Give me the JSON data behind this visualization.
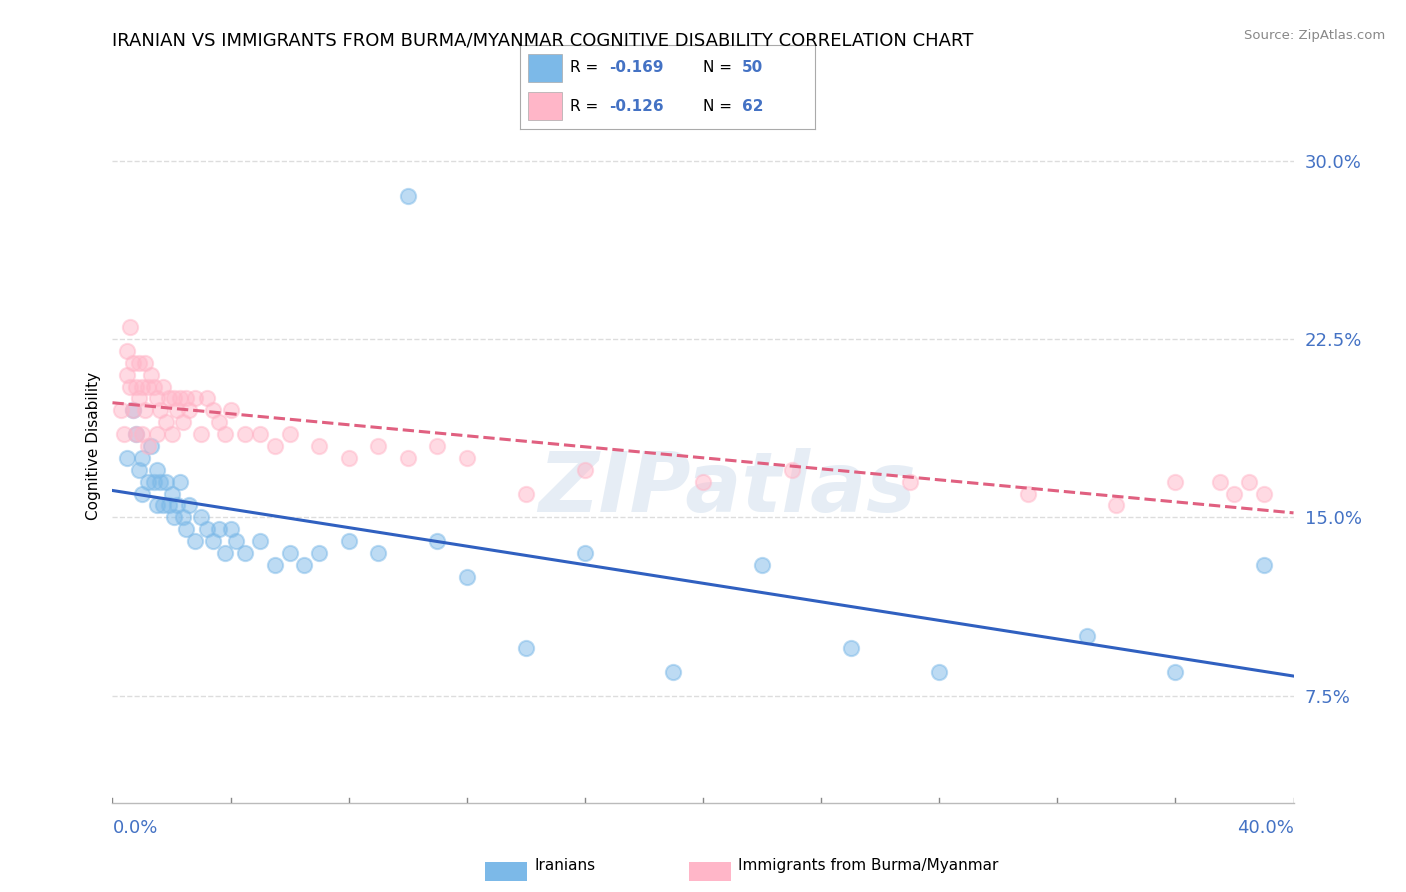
{
  "title": "IRANIAN VS IMMIGRANTS FROM BURMA/MYANMAR COGNITIVE DISABILITY CORRELATION CHART",
  "source": "Source: ZipAtlas.com",
  "ylabel": "Cognitive Disability",
  "yticks": [
    0.075,
    0.15,
    0.225,
    0.3
  ],
  "ytick_labels": [
    "7.5%",
    "15.0%",
    "22.5%",
    "30.0%"
  ],
  "xmin": 0.0,
  "xmax": 0.4,
  "ymin": 0.03,
  "ymax": 0.33,
  "iranians_color": "#7cb9e8",
  "burma_color": "#ffb6c8",
  "iranians_label": "Iranians",
  "burma_label": "Immigrants from Burma/Myanmar",
  "iranians_r": "-0.169",
  "iranians_n": "50",
  "burma_r": "-0.126",
  "burma_n": "62",
  "iranians_x": [
    0.005,
    0.007,
    0.008,
    0.009,
    0.01,
    0.01,
    0.012,
    0.013,
    0.014,
    0.015,
    0.015,
    0.016,
    0.017,
    0.018,
    0.019,
    0.02,
    0.021,
    0.022,
    0.023,
    0.024,
    0.025,
    0.026,
    0.028,
    0.03,
    0.032,
    0.034,
    0.036,
    0.038,
    0.04,
    0.042,
    0.045,
    0.05,
    0.055,
    0.06,
    0.065,
    0.07,
    0.08,
    0.09,
    0.1,
    0.11,
    0.12,
    0.14,
    0.16,
    0.19,
    0.22,
    0.25,
    0.28,
    0.33,
    0.36,
    0.39
  ],
  "iranians_y": [
    0.175,
    0.195,
    0.185,
    0.17,
    0.16,
    0.175,
    0.165,
    0.18,
    0.165,
    0.155,
    0.17,
    0.165,
    0.155,
    0.165,
    0.155,
    0.16,
    0.15,
    0.155,
    0.165,
    0.15,
    0.145,
    0.155,
    0.14,
    0.15,
    0.145,
    0.14,
    0.145,
    0.135,
    0.145,
    0.14,
    0.135,
    0.14,
    0.13,
    0.135,
    0.13,
    0.135,
    0.14,
    0.135,
    0.285,
    0.14,
    0.125,
    0.095,
    0.135,
    0.085,
    0.13,
    0.095,
    0.085,
    0.1,
    0.085,
    0.13
  ],
  "burma_x": [
    0.003,
    0.004,
    0.005,
    0.005,
    0.006,
    0.006,
    0.007,
    0.007,
    0.008,
    0.008,
    0.009,
    0.009,
    0.01,
    0.01,
    0.011,
    0.011,
    0.012,
    0.012,
    0.013,
    0.014,
    0.015,
    0.015,
    0.016,
    0.017,
    0.018,
    0.019,
    0.02,
    0.021,
    0.022,
    0.023,
    0.024,
    0.025,
    0.026,
    0.028,
    0.03,
    0.032,
    0.034,
    0.036,
    0.038,
    0.04,
    0.045,
    0.05,
    0.055,
    0.06,
    0.07,
    0.08,
    0.09,
    0.1,
    0.11,
    0.12,
    0.14,
    0.16,
    0.2,
    0.23,
    0.27,
    0.31,
    0.34,
    0.36,
    0.375,
    0.38,
    0.385,
    0.39
  ],
  "burma_y": [
    0.195,
    0.185,
    0.21,
    0.22,
    0.205,
    0.23,
    0.195,
    0.215,
    0.185,
    0.205,
    0.2,
    0.215,
    0.185,
    0.205,
    0.195,
    0.215,
    0.18,
    0.205,
    0.21,
    0.205,
    0.185,
    0.2,
    0.195,
    0.205,
    0.19,
    0.2,
    0.185,
    0.2,
    0.195,
    0.2,
    0.19,
    0.2,
    0.195,
    0.2,
    0.185,
    0.2,
    0.195,
    0.19,
    0.185,
    0.195,
    0.185,
    0.185,
    0.18,
    0.185,
    0.18,
    0.175,
    0.18,
    0.175,
    0.18,
    0.175,
    0.16,
    0.17,
    0.165,
    0.17,
    0.165,
    0.16,
    0.155,
    0.165,
    0.165,
    0.16,
    0.165,
    0.16
  ],
  "watermark": "ZIPatlas",
  "grid_color": "#dddddd",
  "grid_style": "--",
  "title_fontsize": 13,
  "tick_fontsize": 13,
  "tick_color": "#4472c4",
  "legend_border_color": "#aaaaaa",
  "blue_line_color": "#3060c0",
  "pink_line_color": "#e06080",
  "scatter_size": 120,
  "scatter_alpha": 0.5,
  "scatter_linewidth": 1.5
}
